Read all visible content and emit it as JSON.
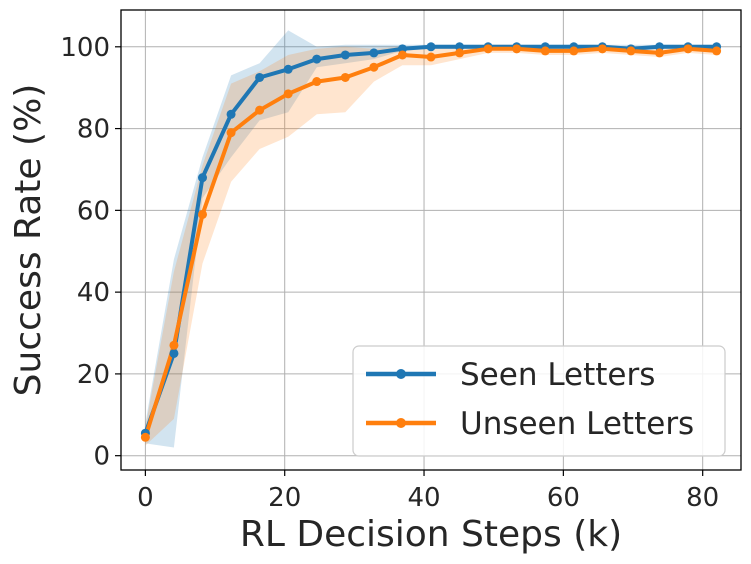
{
  "chart_data": {
    "type": "line",
    "xlabel": "RL Decision Steps (k)",
    "ylabel": "Success Rate (%)",
    "xlim": [
      -3.5,
      85.5
    ],
    "ylim": [
      -3.5,
      109
    ],
    "xticks": [
      0,
      20,
      40,
      60,
      80
    ],
    "yticks": [
      0,
      20,
      40,
      60,
      80,
      100
    ],
    "grid": true,
    "legend_position": "lower-right",
    "x": [
      0,
      4.1,
      8.2,
      12.3,
      16.4,
      20.5,
      24.6,
      28.7,
      32.8,
      36.9,
      41.0,
      45.1,
      49.2,
      53.3,
      57.4,
      61.5,
      65.6,
      69.7,
      73.8,
      77.9,
      82.0
    ],
    "series": [
      {
        "name": "Seen Letters",
        "color": "#1f77b4",
        "values": [
          5.5,
          25,
          68,
          83.5,
          92.5,
          94.5,
          97,
          98,
          98.5,
          99.5,
          100,
          100,
          100,
          100,
          100,
          100,
          100,
          99.5,
          100,
          100,
          100
        ],
        "lower": [
          3,
          2,
          63,
          73,
          82,
          84,
          95,
          96,
          97,
          99,
          99.5,
          99.5,
          99.5,
          99.5,
          99.5,
          99.5,
          99.5,
          99,
          99.5,
          99.5,
          99.5
        ],
        "upper": [
          8,
          48,
          73,
          93,
          96,
          104,
          100,
          100.5,
          100.5,
          100.5,
          100.5,
          100.5,
          100.5,
          100.5,
          100.5,
          100.5,
          100.5,
          100.5,
          100.5,
          100.5,
          100.5
        ]
      },
      {
        "name": "Unseen Letters",
        "color": "#ff7f0e",
        "values": [
          4.5,
          27,
          59,
          79,
          84.5,
          88.5,
          91.5,
          92.5,
          95,
          98,
          97.5,
          98.5,
          99.5,
          99.5,
          99,
          99,
          99.5,
          99,
          98.5,
          99.5,
          99
        ],
        "lower": [
          2.5,
          9,
          47,
          67,
          75,
          78,
          83.5,
          84,
          91.5,
          95.5,
          95.5,
          97,
          98.5,
          98.5,
          98,
          98,
          98.5,
          98,
          97.5,
          98.5,
          98
        ],
        "upper": [
          7,
          45,
          71,
          91,
          94,
          98,
          99.5,
          100,
          99.5,
          100,
          99.5,
          100,
          100.5,
          100.5,
          100,
          100,
          100.5,
          100,
          99.5,
          100.5,
          100
        ]
      }
    ]
  }
}
